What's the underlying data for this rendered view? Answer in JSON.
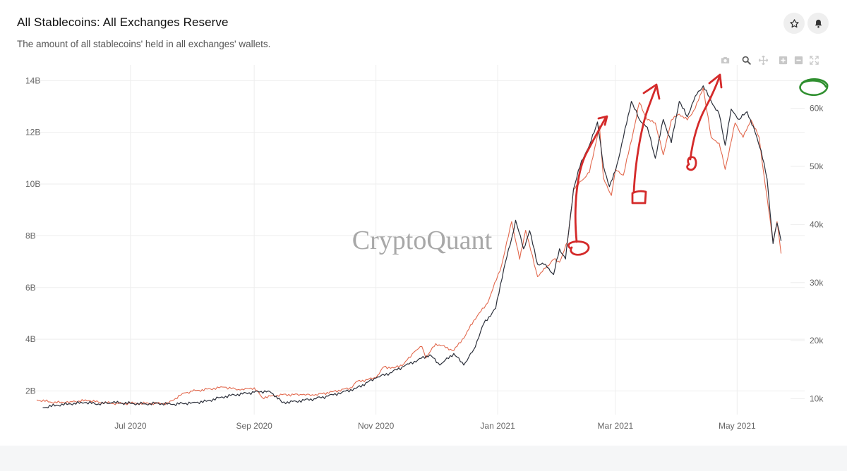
{
  "header": {
    "title": "All Stablecoins: All Exchanges Reserve",
    "subtitle": "The amount of all stablecoins' held in all exchanges' wallets.",
    "star_icon": "star-icon",
    "bell_icon": "bell-icon"
  },
  "toolbar": {
    "icons": [
      "camera-icon",
      "zoom-icon",
      "pan-icon",
      "zoom-in-icon",
      "zoom-out-icon",
      "autoscale-icon"
    ]
  },
  "watermark": "CryptoQuant",
  "colors": {
    "reserve_line": "#2b2f3a",
    "price_line": "#e2694e",
    "annotation_red": "#d42a2a",
    "annotation_green": "#2f8f2f",
    "grid": "#eeeeee"
  },
  "chart_data": {
    "type": "line",
    "x_ticks": [
      {
        "date": "2020-07-01",
        "label": "Jul 2020"
      },
      {
        "date": "2020-09-01",
        "label": "Sep 2020"
      },
      {
        "date": "2020-11-01",
        "label": "Nov 2020"
      },
      {
        "date": "2021-01-01",
        "label": "Jan 2021"
      },
      {
        "date": "2021-03-01",
        "label": "Mar 2021"
      },
      {
        "date": "2021-05-01",
        "label": "May 2021"
      }
    ],
    "x_range": [
      "2020-05-15",
      "2021-06-01"
    ],
    "y_left": {
      "range": [
        1.25,
        14.5
      ],
      "ticks": [
        {
          "value": 2,
          "label": "2B"
        },
        {
          "value": 4,
          "label": "4B"
        },
        {
          "value": 6,
          "label": "6B"
        },
        {
          "value": 8,
          "label": "8B"
        },
        {
          "value": 10,
          "label": "10B"
        },
        {
          "value": 12,
          "label": "12B"
        },
        {
          "value": 14,
          "label": "14B"
        }
      ]
    },
    "y_right": {
      "range": [
        8000,
        67000
      ],
      "ticks": [
        {
          "value": 10000,
          "label": "10k"
        },
        {
          "value": 20000,
          "label": "20k"
        },
        {
          "value": 30000,
          "label": "30k"
        },
        {
          "value": 40000,
          "label": "40k"
        },
        {
          "value": 50000,
          "label": "50k"
        },
        {
          "value": 60000,
          "label": "60k"
        }
      ]
    },
    "grid": true,
    "series": [
      {
        "axis": "left",
        "points": [
          [
            "2020-05-18",
            1.35
          ],
          [
            "2020-05-25",
            1.45
          ],
          [
            "2020-06-01",
            1.5
          ],
          [
            "2020-06-08",
            1.55
          ],
          [
            "2020-06-15",
            1.5
          ],
          [
            "2020-06-22",
            1.55
          ],
          [
            "2020-07-01",
            1.52
          ],
          [
            "2020-07-08",
            1.5
          ],
          [
            "2020-07-15",
            1.52
          ],
          [
            "2020-07-22",
            1.48
          ],
          [
            "2020-08-01",
            1.55
          ],
          [
            "2020-08-08",
            1.6
          ],
          [
            "2020-08-15",
            1.75
          ],
          [
            "2020-08-22",
            1.85
          ],
          [
            "2020-09-01",
            1.95
          ],
          [
            "2020-09-08",
            2.0
          ],
          [
            "2020-09-12",
            1.8
          ],
          [
            "2020-09-15",
            1.55
          ],
          [
            "2020-09-22",
            1.6
          ],
          [
            "2020-10-01",
            1.7
          ],
          [
            "2020-10-08",
            1.8
          ],
          [
            "2020-10-15",
            1.95
          ],
          [
            "2020-10-22",
            2.1
          ],
          [
            "2020-11-01",
            2.5
          ],
          [
            "2020-11-08",
            2.7
          ],
          [
            "2020-11-15",
            2.95
          ],
          [
            "2020-11-22",
            3.2
          ],
          [
            "2020-11-28",
            3.4
          ],
          [
            "2020-12-03",
            3.0
          ],
          [
            "2020-12-10",
            3.45
          ],
          [
            "2020-12-15",
            3.0
          ],
          [
            "2020-12-20",
            3.6
          ],
          [
            "2020-12-25",
            4.6
          ],
          [
            "2020-12-31",
            5.2
          ],
          [
            "2021-01-04",
            6.7
          ],
          [
            "2021-01-08",
            7.9
          ],
          [
            "2021-01-10",
            8.6
          ],
          [
            "2021-01-14",
            7.5
          ],
          [
            "2021-01-17",
            8.2
          ],
          [
            "2021-01-21",
            6.9
          ],
          [
            "2021-01-25",
            6.9
          ],
          [
            "2021-01-29",
            6.5
          ],
          [
            "2021-02-01",
            7.5
          ],
          [
            "2021-02-04",
            7.1
          ],
          [
            "2021-02-08",
            9.8
          ],
          [
            "2021-02-12",
            10.9
          ],
          [
            "2021-02-16",
            11.5
          ],
          [
            "2021-02-20",
            12.4
          ],
          [
            "2021-02-23",
            10.7
          ],
          [
            "2021-02-26",
            9.9
          ],
          [
            "2021-03-01",
            10.5
          ],
          [
            "2021-03-05",
            11.8
          ],
          [
            "2021-03-09",
            13.2
          ],
          [
            "2021-03-13",
            12.5
          ],
          [
            "2021-03-17",
            12.2
          ],
          [
            "2021-03-21",
            11.0
          ],
          [
            "2021-03-25",
            12.5
          ],
          [
            "2021-03-29",
            11.6
          ],
          [
            "2021-04-02",
            13.2
          ],
          [
            "2021-04-06",
            12.6
          ],
          [
            "2021-04-10",
            13.4
          ],
          [
            "2021-04-14",
            13.8
          ],
          [
            "2021-04-18",
            13.2
          ],
          [
            "2021-04-22",
            12.7
          ],
          [
            "2021-04-25",
            11.5
          ],
          [
            "2021-04-28",
            12.9
          ],
          [
            "2021-05-02",
            12.5
          ],
          [
            "2021-05-06",
            12.8
          ],
          [
            "2021-05-10",
            12.0
          ],
          [
            "2021-05-13",
            11.3
          ],
          [
            "2021-05-16",
            10.2
          ],
          [
            "2021-05-19",
            7.7
          ],
          [
            "2021-05-21",
            8.5
          ],
          [
            "2021-05-23",
            7.8
          ]
        ]
      },
      {
        "axis": "right",
        "points": [
          [
            "2020-05-15",
            9800
          ],
          [
            "2020-05-25",
            9300
          ],
          [
            "2020-06-01",
            9500
          ],
          [
            "2020-06-10",
            9700
          ],
          [
            "2020-06-15",
            9400
          ],
          [
            "2020-06-25",
            9150
          ],
          [
            "2020-07-01",
            9200
          ],
          [
            "2020-07-10",
            9200
          ],
          [
            "2020-07-20",
            9200
          ],
          [
            "2020-07-27",
            10900
          ],
          [
            "2020-08-01",
            11300
          ],
          [
            "2020-08-10",
            11700
          ],
          [
            "2020-08-17",
            12000
          ],
          [
            "2020-08-25",
            11500
          ],
          [
            "2020-09-01",
            11900
          ],
          [
            "2020-09-05",
            10200
          ],
          [
            "2020-09-15",
            10700
          ],
          [
            "2020-09-25",
            10700
          ],
          [
            "2020-10-01",
            10600
          ],
          [
            "2020-10-10",
            11200
          ],
          [
            "2020-10-20",
            11900
          ],
          [
            "2020-10-22",
            12900
          ],
          [
            "2020-11-01",
            13600
          ],
          [
            "2020-11-05",
            15500
          ],
          [
            "2020-11-10",
            15300
          ],
          [
            "2020-11-15",
            16000
          ],
          [
            "2020-11-20",
            18000
          ],
          [
            "2020-11-24",
            19000
          ],
          [
            "2020-11-26",
            17000
          ],
          [
            "2020-12-01",
            19500
          ],
          [
            "2020-12-10",
            18300
          ],
          [
            "2020-12-16",
            21000
          ],
          [
            "2020-12-20",
            23500
          ],
          [
            "2020-12-27",
            26500
          ],
          [
            "2021-01-03",
            33000
          ],
          [
            "2021-01-08",
            40500
          ],
          [
            "2021-01-12",
            34000
          ],
          [
            "2021-01-15",
            39000
          ],
          [
            "2021-01-21",
            31000
          ],
          [
            "2021-01-25",
            32500
          ],
          [
            "2021-01-29",
            34000
          ],
          [
            "2021-02-01",
            33500
          ],
          [
            "2021-02-05",
            37000
          ],
          [
            "2021-02-08",
            46000
          ],
          [
            "2021-02-12",
            47500
          ],
          [
            "2021-02-16",
            49000
          ],
          [
            "2021-02-21",
            57000
          ],
          [
            "2021-02-23",
            48000
          ],
          [
            "2021-02-27",
            45000
          ],
          [
            "2021-03-01",
            49500
          ],
          [
            "2021-03-05",
            48500
          ],
          [
            "2021-03-10",
            56000
          ],
          [
            "2021-03-13",
            61000
          ],
          [
            "2021-03-17",
            58000
          ],
          [
            "2021-03-21",
            57500
          ],
          [
            "2021-03-25",
            52000
          ],
          [
            "2021-03-29",
            58000
          ],
          [
            "2021-04-02",
            59000
          ],
          [
            "2021-04-06",
            58000
          ],
          [
            "2021-04-10",
            60000
          ],
          [
            "2021-04-14",
            63500
          ],
          [
            "2021-04-18",
            55000
          ],
          [
            "2021-04-22",
            54000
          ],
          [
            "2021-04-25",
            49500
          ],
          [
            "2021-04-30",
            57500
          ],
          [
            "2021-05-04",
            55000
          ],
          [
            "2021-05-08",
            58000
          ],
          [
            "2021-05-12",
            55000
          ],
          [
            "2021-05-15",
            47000
          ],
          [
            "2021-05-19",
            37000
          ],
          [
            "2021-05-21",
            40500
          ],
          [
            "2021-05-23",
            35000
          ]
        ]
      }
    ]
  }
}
